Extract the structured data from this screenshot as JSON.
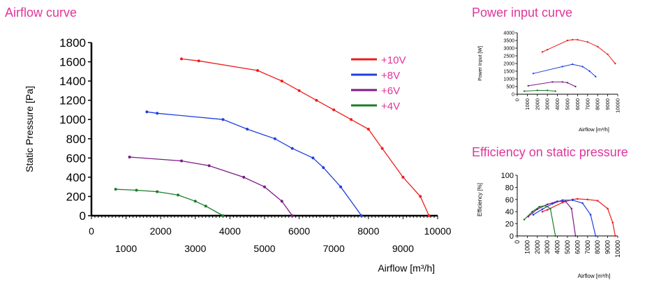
{
  "headings": {
    "airflow": "Airflow curve",
    "power": "Power input curve",
    "efficiency": "Efficiency on static pressure"
  },
  "colors": {
    "heading": "#e0359a",
    "legend_text": "#e0359a",
    "series": {
      "+10V": "#ee1c1c",
      "+8V": "#1f3fe0",
      "+6V": "#7c1a86",
      "+4V": "#1b7c2a"
    }
  },
  "chart_data": [
    {
      "id": "airflow",
      "type": "line",
      "title": "Airflow curve",
      "xlabel": "Airflow [m³/h]",
      "ylabel": "Static Pressure [Pa]",
      "xlim": [
        0,
        10000
      ],
      "ylim": [
        0,
        1800
      ],
      "x_ticks_major": [
        0,
        2000,
        4000,
        6000,
        8000,
        10000
      ],
      "x_ticks_minor": [
        1000,
        3000,
        5000,
        7000,
        9000
      ],
      "y_ticks": [
        0,
        200,
        400,
        600,
        800,
        1000,
        1200,
        1400,
        1600,
        1800
      ],
      "legend": [
        "+10V",
        "+8V",
        "+6V",
        "+4V"
      ],
      "legend_position": "top-right",
      "series": [
        {
          "name": "+10V",
          "x": [
            2600,
            3100,
            4800,
            5500,
            6000,
            6500,
            7000,
            7500,
            8000,
            8400,
            9000,
            9500,
            9750
          ],
          "y": [
            1630,
            1610,
            1510,
            1400,
            1300,
            1200,
            1100,
            1000,
            900,
            700,
            400,
            200,
            0
          ]
        },
        {
          "name": "+8V",
          "x": [
            1600,
            1900,
            3800,
            4500,
            5300,
            5800,
            6400,
            6700,
            7200,
            7800
          ],
          "y": [
            1080,
            1065,
            1000,
            900,
            800,
            700,
            600,
            500,
            300,
            0
          ]
        },
        {
          "name": "+6V",
          "x": [
            1100,
            2600,
            3400,
            4400,
            5000,
            5500,
            5800
          ],
          "y": [
            610,
            570,
            520,
            400,
            300,
            150,
            0
          ]
        },
        {
          "name": "+4V",
          "x": [
            700,
            1300,
            1900,
            2500,
            3000,
            3300,
            3800
          ],
          "y": [
            275,
            265,
            250,
            215,
            150,
            100,
            0
          ]
        }
      ]
    },
    {
      "id": "power",
      "type": "line",
      "title": "Power input curve",
      "xlabel": "Airflow [m³/h]",
      "ylabel": "Power Input [W]",
      "xlim": [
        0,
        10000
      ],
      "ylim": [
        0,
        4000
      ],
      "x_ticks": [
        0,
        1000,
        2000,
        3000,
        4000,
        5000,
        6000,
        7000,
        8000,
        9000,
        10000
      ],
      "y_ticks": [
        0,
        500,
        1000,
        1500,
        2000,
        2500,
        3000,
        3500,
        4000
      ],
      "series": [
        {
          "name": "+10V",
          "x": [
            2500,
            3000,
            5000,
            5500,
            6000,
            7000,
            8000,
            9000,
            9750
          ],
          "y": [
            2750,
            2900,
            3500,
            3550,
            3550,
            3400,
            3100,
            2600,
            2000
          ]
        },
        {
          "name": "+8V",
          "x": [
            1600,
            4500,
            5500,
            6500,
            7200,
            7800
          ],
          "y": [
            1350,
            1800,
            1950,
            1800,
            1500,
            1150
          ]
        },
        {
          "name": "+6V",
          "x": [
            1100,
            3500,
            4500,
            5000,
            5800
          ],
          "y": [
            550,
            800,
            800,
            750,
            500
          ]
        },
        {
          "name": "+4V",
          "x": [
            700,
            2000,
            3000,
            3800
          ],
          "y": [
            200,
            250,
            250,
            200
          ]
        }
      ]
    },
    {
      "id": "efficiency",
      "type": "line",
      "title": "Efficiency on static pressure",
      "xlabel": "Airflow [m³/h]",
      "ylabel": "Efficiency [%]",
      "xlim": [
        0,
        10000
      ],
      "ylim": [
        0,
        100
      ],
      "x_ticks": [
        0,
        1000,
        2000,
        3000,
        4000,
        5000,
        6000,
        7000,
        8000,
        9000,
        10000
      ],
      "y_ticks": [
        0,
        20,
        40,
        60,
        80,
        100
      ],
      "series": [
        {
          "name": "+10V",
          "x": [
            2500,
            3000,
            4500,
            5500,
            6000,
            7000,
            8000,
            9000,
            9500,
            9750
          ],
          "y": [
            40,
            43,
            55,
            60,
            61,
            60,
            58,
            45,
            22,
            0
          ]
        },
        {
          "name": "+8V",
          "x": [
            1600,
            2500,
            3500,
            4500,
            5500,
            6500,
            7300,
            7800
          ],
          "y": [
            35,
            44,
            53,
            59,
            59,
            54,
            35,
            0
          ]
        },
        {
          "name": "+6V",
          "x": [
            1100,
            2000,
            3000,
            4000,
            4800,
            5400,
            5800
          ],
          "y": [
            32,
            44,
            52,
            57,
            57,
            45,
            0
          ]
        },
        {
          "name": "+4V",
          "x": [
            700,
            1500,
            2200,
            2800,
            3300,
            3800
          ],
          "y": [
            27,
            40,
            48,
            50,
            45,
            0
          ]
        }
      ]
    }
  ]
}
